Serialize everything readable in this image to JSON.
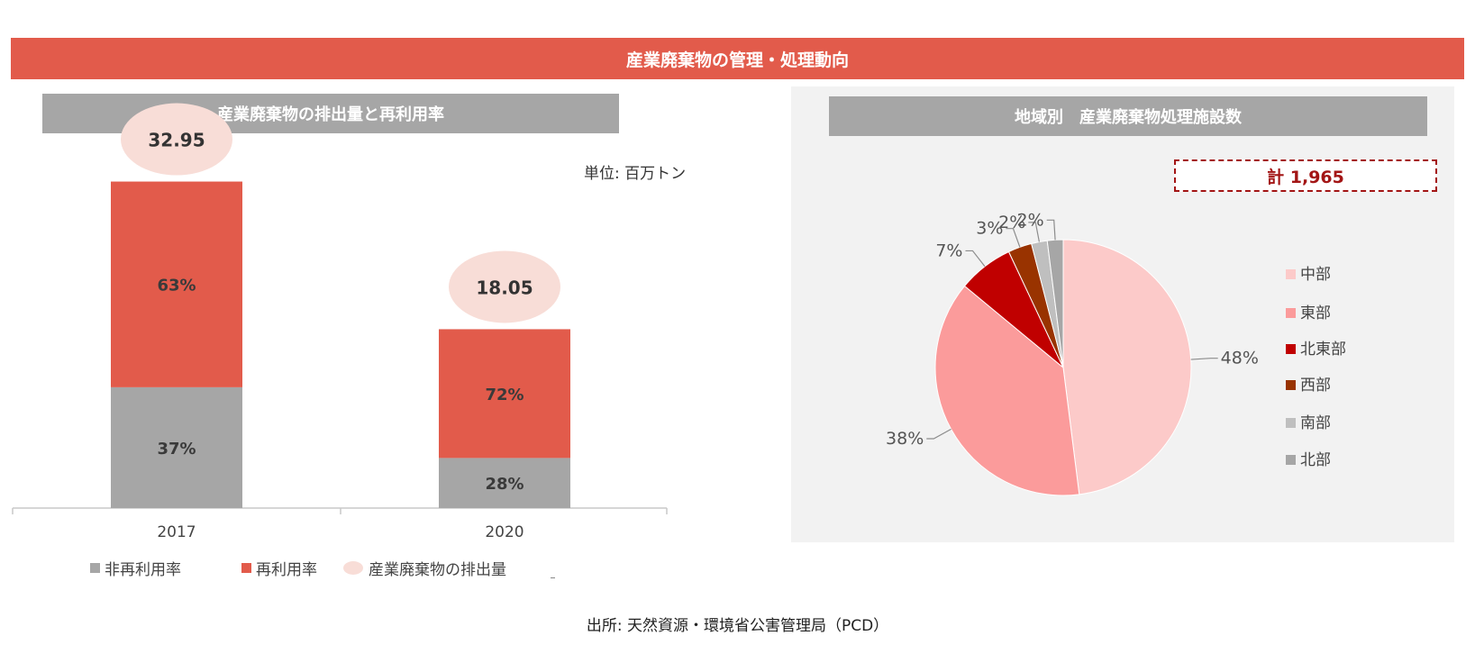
{
  "title": "産業廃棄物の管理・処理動向",
  "left_panel": {
    "header": "産業廃棄物の排出量と再利用率",
    "unit": "単位: 百万トン",
    "legend": [
      "非再利用率",
      "再利用率",
      "産業廃棄物の排出量"
    ]
  },
  "right_panel": {
    "header": "地域別　産業廃棄物処理施設数",
    "total": "計 1,965"
  },
  "source": "出所: 天然資源・環境省公害管理局（PCD）",
  "colors": {
    "banner": "#e25b4b",
    "header_gray": "#a6a6a6",
    "recycled": "#e25b4b",
    "non_recycled": "#a6a6a6",
    "emission_bubble": "#f8ddd7",
    "total_border": "#a31515"
  },
  "chart_data": [
    {
      "type": "bar",
      "stacked": true,
      "title": "産業廃棄物の排出量と再利用率",
      "categories": [
        "2017",
        "2020"
      ],
      "series": [
        {
          "name": "非再利用率",
          "values": [
            37,
            28
          ],
          "labels": [
            "37%",
            "28%"
          ],
          "color": "#a6a6a6"
        },
        {
          "name": "再利用率",
          "values": [
            63,
            72
          ],
          "labels": [
            "63%",
            "72%"
          ],
          "color": "#e25b4b"
        }
      ],
      "emissions": {
        "name": "産業廃棄物の排出量",
        "values": [
          32.95,
          18.05
        ],
        "labels": [
          "32.95",
          "18.05"
        ]
      },
      "unit": "単位: 百万トン",
      "legend_position": "bottom"
    },
    {
      "type": "pie",
      "title": "地域別　産業廃棄物処理施設数",
      "total": "計 1,965",
      "slices": [
        {
          "name": "中部",
          "value": 48,
          "label": "48%",
          "color": "#fccac9"
        },
        {
          "name": "東部",
          "value": 38,
          "label": "38%",
          "color": "#fb9b9b"
        },
        {
          "name": "北東部",
          "value": 7,
          "label": "7%",
          "color": "#c00000"
        },
        {
          "name": "西部",
          "value": 3,
          "label": "3%",
          "color": "#993300"
        },
        {
          "name": "南部",
          "value": 2,
          "label": "2%",
          "color": "#bfbfbf"
        },
        {
          "name": "北部",
          "value": 2,
          "label": "2%",
          "color": "#a6a6a6"
        }
      ],
      "legend_position": "right"
    }
  ]
}
